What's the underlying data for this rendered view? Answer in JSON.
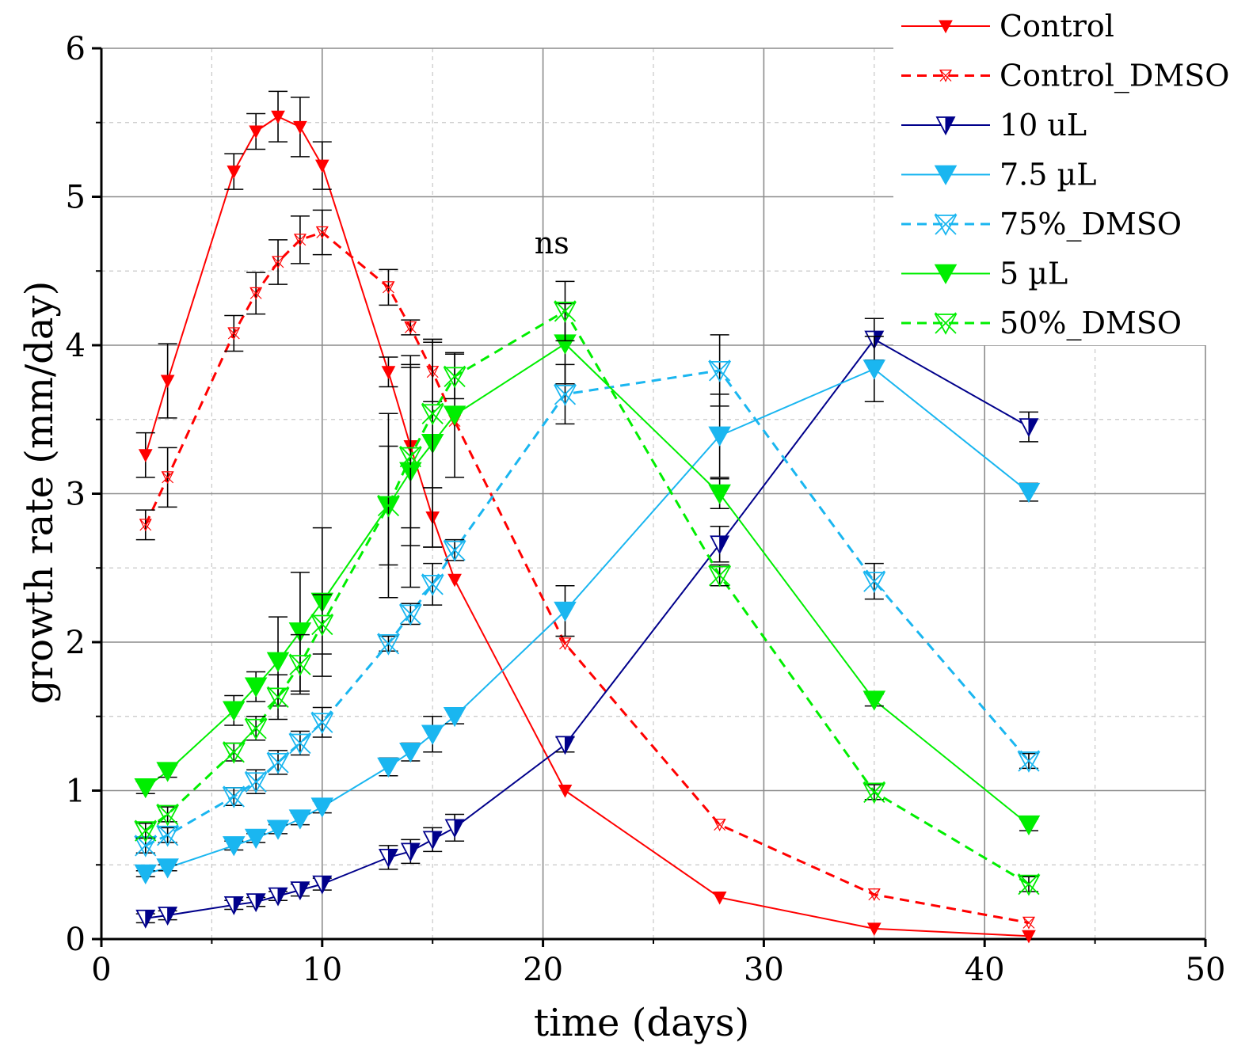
{
  "chart_data": {
    "type": "line",
    "title": "",
    "xlabel": "time (days)",
    "ylabel": "growth rate (mm/day)",
    "xlim": [
      0,
      50
    ],
    "ylim": [
      0,
      6
    ],
    "xticks": [
      0,
      10,
      20,
      30,
      40,
      50
    ],
    "yticks": [
      0,
      1,
      2,
      3,
      4,
      5,
      6
    ],
    "grid": true,
    "legend_position": "top-right",
    "annotations": [
      {
        "text": "ns",
        "x": 20.4,
        "y": 4.62
      }
    ],
    "series": [
      {
        "name": "Control",
        "color": "#ff0000",
        "dashed": false,
        "marker": "triangle-small",
        "x": [
          2,
          3,
          6,
          7,
          8,
          9,
          10,
          13,
          14,
          15,
          16,
          21,
          28,
          35,
          42
        ],
        "y": [
          3.26,
          3.76,
          5.17,
          5.44,
          5.54,
          5.47,
          5.21,
          3.82,
          3.32,
          2.84,
          2.42,
          1.0,
          0.28,
          0.07,
          0.02
        ],
        "err": [
          0.15,
          0.25,
          0.12,
          0.12,
          0.17,
          0.2,
          0.16,
          0.1,
          0.55,
          0.2,
          0.0,
          0.0,
          0.0,
          0.0,
          0.0
        ]
      },
      {
        "name": "Control_DMSO",
        "color": "#ff0000",
        "dashed": true,
        "marker": "x-small",
        "x": [
          2,
          3,
          6,
          7,
          8,
          9,
          10,
          13,
          14,
          15,
          16,
          21,
          28,
          35,
          42
        ],
        "y": [
          2.79,
          3.11,
          4.08,
          4.35,
          4.56,
          4.71,
          4.76,
          4.39,
          4.12,
          3.82,
          3.49,
          1.99,
          0.77,
          0.3,
          0.11
        ],
        "err": [
          0.1,
          0.2,
          0.12,
          0.14,
          0.15,
          0.16,
          0.15,
          0.12,
          0.05,
          0.2,
          0.0,
          0.0,
          0.0,
          0.0,
          0.0
        ]
      },
      {
        "name": "10 uL",
        "color": "#00008b",
        "dashed": false,
        "marker": "triangle-half",
        "x": [
          2,
          3,
          6,
          7,
          8,
          9,
          10,
          13,
          14,
          15,
          16,
          21,
          28,
          35,
          42
        ],
        "y": [
          0.14,
          0.16,
          0.23,
          0.25,
          0.29,
          0.33,
          0.37,
          0.55,
          0.59,
          0.67,
          0.75,
          1.31,
          2.66,
          4.04,
          3.45
        ],
        "err": [
          0.03,
          0.03,
          0.03,
          0.03,
          0.03,
          0.04,
          0.04,
          0.08,
          0.08,
          0.08,
          0.09,
          0.05,
          0.12,
          0.14,
          0.1
        ]
      },
      {
        "name": "7.5 µL",
        "color": "#1ab6f0",
        "dashed": false,
        "marker": "triangle-large",
        "x": [
          2,
          3,
          6,
          7,
          8,
          9,
          10,
          13,
          14,
          15,
          16,
          21,
          28,
          35,
          42
        ],
        "y": [
          0.44,
          0.48,
          0.63,
          0.68,
          0.74,
          0.81,
          0.89,
          1.16,
          1.26,
          1.38,
          1.5,
          2.21,
          3.39,
          3.84,
          3.01
        ],
        "err": [
          0.02,
          0.02,
          0.03,
          0.03,
          0.03,
          0.04,
          0.04,
          0.06,
          0.06,
          0.12,
          0.05,
          0.17,
          0.28,
          0.22,
          0.06
        ]
      },
      {
        "name": "75%_DMSO",
        "color": "#1ab6f0",
        "dashed": true,
        "marker": "x-large",
        "x": [
          2,
          3,
          6,
          7,
          8,
          9,
          10,
          13,
          14,
          15,
          16,
          21,
          28,
          35,
          42
        ],
        "y": [
          0.63,
          0.7,
          0.96,
          1.06,
          1.19,
          1.32,
          1.46,
          1.99,
          2.19,
          2.39,
          2.62,
          3.67,
          3.83,
          2.41,
          1.2
        ],
        "err": [
          0.05,
          0.05,
          0.06,
          0.08,
          0.08,
          0.08,
          0.1,
          0.05,
          0.07,
          0.14,
          0.07,
          0.2,
          0.24,
          0.12,
          0.05
        ]
      },
      {
        "name": "5 µL",
        "color": "#00ee00",
        "dashed": false,
        "marker": "triangle-large",
        "x": [
          2,
          3,
          6,
          7,
          8,
          9,
          10,
          13,
          14,
          15,
          16,
          21,
          28,
          35,
          42
        ],
        "y": [
          1.02,
          1.13,
          1.54,
          1.7,
          1.87,
          2.07,
          2.27,
          2.92,
          3.15,
          3.34,
          3.53,
          4.01,
          3.0,
          1.61,
          0.77
        ],
        "err": [
          0.04,
          0.04,
          0.1,
          0.1,
          0.3,
          0.4,
          0.5,
          0.62,
          0.78,
          0.7,
          0.42,
          0.27,
          0.1,
          0.04,
          0.04
        ]
      },
      {
        "name": "50%_DMSO",
        "color": "#00ee00",
        "dashed": true,
        "marker": "x-large",
        "x": [
          2,
          3,
          6,
          7,
          8,
          9,
          10,
          13,
          14,
          15,
          16,
          21,
          28,
          35,
          42
        ],
        "y": [
          0.73,
          0.84,
          1.26,
          1.42,
          1.63,
          1.85,
          2.12,
          2.92,
          3.25,
          3.54,
          3.79,
          4.23,
          2.45,
          0.99,
          0.37
        ],
        "err": [
          0.05,
          0.05,
          0.06,
          0.08,
          0.15,
          0.2,
          0.2,
          0.4,
          0.6,
          0.5,
          0.15,
          0.2,
          0.07,
          0.05,
          0.05
        ]
      }
    ]
  }
}
